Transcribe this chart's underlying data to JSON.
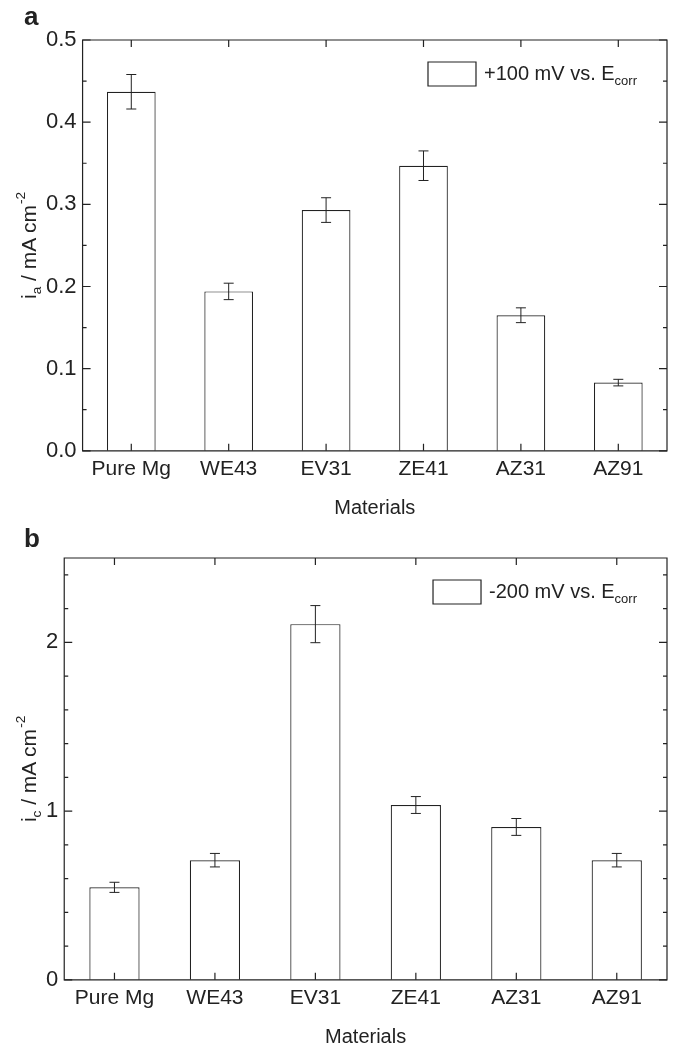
{
  "chart_data": [
    {
      "type": "bar",
      "title": "a",
      "xlabel": "Materials",
      "ylabel": "i$_{a}$ / mA cm$^{-2}$",
      "categories": [
        "Pure Mg",
        "WE43",
        "EV31",
        "ZE41",
        "AZ31",
        "AZ91"
      ],
      "series": [
        {
          "name": "+100 mV vs. E$_{corr}$",
          "color": "#ffffff",
          "values": [
            0.437,
            0.194,
            0.293,
            0.347,
            0.165,
            0.083
          ],
          "errors": [
            0.021,
            0.01,
            0.015,
            0.018,
            0.009,
            0.004
          ]
        }
      ],
      "ylim": [
        0,
        0.5
      ],
      "yticks": [
        {
          "value": 0,
          "label": "0.0"
        },
        {
          "value": 0.05,
          "label": null
        },
        {
          "value": 0.1,
          "label": "0.1"
        },
        {
          "value": 0.15,
          "label": null
        },
        {
          "value": 0.2,
          "label": "0.2"
        },
        {
          "value": 0.25,
          "label": null
        },
        {
          "value": 0.3,
          "label": "0.3"
        },
        {
          "value": 0.35,
          "label": null
        },
        {
          "value": 0.4,
          "label": "0.4"
        },
        {
          "value": 0.45,
          "label": null
        },
        {
          "value": 0.5,
          "label": "0.5"
        }
      ],
      "legend": "top right"
    },
    {
      "type": "bar",
      "title": "b",
      "xlabel": "Materials",
      "ylabel": "i$_{c}$ / mA cm$^{-2}$",
      "categories": [
        "Pure Mg",
        "WE43",
        "EV31",
        "ZE41",
        "AZ31",
        "AZ91"
      ],
      "series": [
        {
          "name": "-200 mV vs. E$_{corr}$",
          "color": "#ffffff",
          "values": [
            0.548,
            0.709,
            2.108,
            1.036,
            0.906,
            0.709
          ],
          "errors": [
            0.03,
            0.04,
            0.11,
            0.05,
            0.05,
            0.04
          ]
        }
      ],
      "ylim": [
        0,
        2.5
      ],
      "yticks": [
        0,
        {
          "value": 0.2,
          "label": null
        },
        {
          "value": 0.4,
          "label": null
        },
        {
          "value": 0.6,
          "label": null
        },
        {
          "value": 0.8,
          "label": null
        },
        1,
        {
          "value": 1.2,
          "label": null
        },
        {
          "value": 1.4,
          "label": null
        },
        {
          "value": 1.6,
          "label": null
        },
        {
          "value": 1.8,
          "label": null
        },
        2,
        {
          "value": 2.2,
          "label": null
        },
        {
          "value": 2.4,
          "label": null
        }
      ],
      "legend": "top right"
    }
  ]
}
